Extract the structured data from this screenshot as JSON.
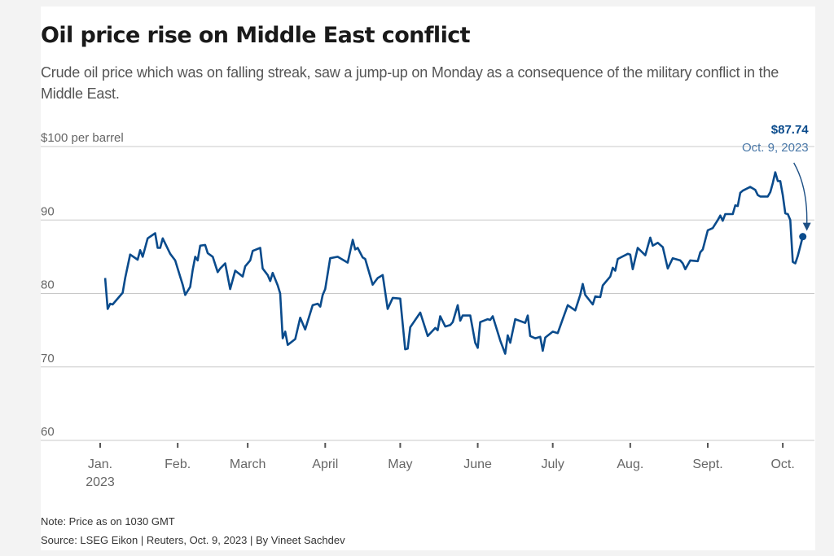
{
  "title": "Oil price rise on Middle East conflict",
  "subtitle": "Crude oil price which was on falling streak, saw a jump-up on Monday as a consequence of the military conflict in the Middle East.",
  "note": "Note: Price as on 1030 GMT",
  "source": "Source: LSEG Eikon | Reuters, Oct. 9, 2023 | By Vineet Sachdev",
  "colors": {
    "line": "#0a4b8c",
    "annotation_date": "#4a78a8",
    "grid": "#c8c8c8"
  },
  "chart_data": {
    "type": "line",
    "title": "Oil price rise on Middle East conflict",
    "xlabel": "",
    "ylabel": "$ per barrel",
    "ylim": [
      60,
      100
    ],
    "yticks": [
      {
        "value": 100,
        "label": "$100 per barrel"
      },
      {
        "value": 90,
        "label": "90"
      },
      {
        "value": 80,
        "label": "80"
      },
      {
        "value": 70,
        "label": "70"
      },
      {
        "value": 60,
        "label": "60"
      }
    ],
    "x_unit": "day of year 2023 (Jan. 1 = 0)",
    "xlim": [
      -5,
      290
    ],
    "xticks": [
      {
        "day": 0,
        "label": "Jan.",
        "sublabel": "2023"
      },
      {
        "day": 31,
        "label": "Feb."
      },
      {
        "day": 59,
        "label": "March"
      },
      {
        "day": 90,
        "label": "April"
      },
      {
        "day": 120,
        "label": "May"
      },
      {
        "day": 151,
        "label": "June"
      },
      {
        "day": 181,
        "label": "July"
      },
      {
        "day": 212,
        "label": "Aug."
      },
      {
        "day": 243,
        "label": "Sept."
      },
      {
        "day": 273,
        "label": "Oct."
      }
    ],
    "grid": true,
    "series": [
      {
        "name": "Crude oil price",
        "points": [
          [
            2,
            82.1
          ],
          [
            3,
            77.9
          ],
          [
            4,
            78.6
          ],
          [
            5,
            78.5
          ],
          [
            9,
            80.1
          ],
          [
            10,
            82.1
          ],
          [
            12,
            85.3
          ],
          [
            15,
            84.6
          ],
          [
            16,
            85.9
          ],
          [
            17,
            85.0
          ],
          [
            19,
            87.5
          ],
          [
            22,
            88.2
          ],
          [
            23,
            86.2
          ],
          [
            24,
            86.2
          ],
          [
            25,
            87.5
          ],
          [
            28,
            85.4
          ],
          [
            30,
            84.5
          ],
          [
            32,
            82.3
          ],
          [
            33,
            81.2
          ],
          [
            34,
            79.8
          ],
          [
            36,
            80.9
          ],
          [
            37,
            83.2
          ],
          [
            38,
            85.0
          ],
          [
            39,
            84.5
          ],
          [
            40,
            86.5
          ],
          [
            42,
            86.6
          ],
          [
            43,
            85.5
          ],
          [
            45,
            85.0
          ],
          [
            47,
            82.9
          ],
          [
            48,
            83.4
          ],
          [
            50,
            84.1
          ],
          [
            52,
            80.6
          ],
          [
            54,
            83.1
          ],
          [
            57,
            82.3
          ],
          [
            58,
            83.7
          ],
          [
            60,
            84.5
          ],
          [
            61,
            85.8
          ],
          [
            64,
            86.2
          ],
          [
            65,
            83.4
          ],
          [
            67,
            82.5
          ],
          [
            68,
            81.7
          ],
          [
            69,
            82.8
          ],
          [
            71,
            81.1
          ],
          [
            72,
            80.0
          ],
          [
            73,
            73.9
          ],
          [
            74,
            74.8
          ],
          [
            75,
            73.0
          ],
          [
            78,
            73.8
          ],
          [
            80,
            76.7
          ],
          [
            82,
            75.1
          ],
          [
            85,
            78.4
          ],
          [
            87,
            78.6
          ],
          [
            88,
            78.2
          ],
          [
            89,
            79.8
          ],
          [
            90,
            80.6
          ],
          [
            92,
            84.8
          ],
          [
            95,
            85.0
          ],
          [
            99,
            84.2
          ],
          [
            101,
            87.3
          ],
          [
            102,
            86.0
          ],
          [
            103,
            86.2
          ],
          [
            105,
            84.9
          ],
          [
            106,
            84.7
          ],
          [
            109,
            81.2
          ],
          [
            111,
            82.1
          ],
          [
            113,
            82.5
          ],
          [
            115,
            77.9
          ],
          [
            117,
            79.4
          ],
          [
            120,
            79.3
          ],
          [
            122,
            72.4
          ],
          [
            123,
            72.5
          ],
          [
            124,
            75.4
          ],
          [
            128,
            77.4
          ],
          [
            131,
            74.2
          ],
          [
            134,
            75.3
          ],
          [
            135,
            75.0
          ],
          [
            136,
            76.9
          ],
          [
            138,
            75.5
          ],
          [
            140,
            75.7
          ],
          [
            141,
            76.1
          ],
          [
            143,
            78.4
          ],
          [
            144,
            76.3
          ],
          [
            145,
            77.0
          ],
          [
            148,
            77.0
          ],
          [
            150,
            73.3
          ],
          [
            151,
            72.6
          ],
          [
            152,
            76.1
          ],
          [
            155,
            76.5
          ],
          [
            156,
            76.4
          ],
          [
            157,
            76.9
          ],
          [
            160,
            73.6
          ],
          [
            162,
            71.8
          ],
          [
            163,
            74.3
          ],
          [
            164,
            73.3
          ],
          [
            166,
            76.5
          ],
          [
            170,
            76.0
          ],
          [
            171,
            77.0
          ],
          [
            172,
            74.2
          ],
          [
            174,
            73.9
          ],
          [
            176,
            74.1
          ],
          [
            177,
            72.2
          ],
          [
            178,
            74.0
          ],
          [
            181,
            74.8
          ],
          [
            183,
            74.6
          ],
          [
            185,
            76.5
          ],
          [
            187,
            78.4
          ],
          [
            190,
            77.7
          ],
          [
            192,
            79.8
          ],
          [
            193,
            81.3
          ],
          [
            194,
            79.8
          ],
          [
            197,
            78.5
          ],
          [
            198,
            79.6
          ],
          [
            200,
            79.5
          ],
          [
            201,
            81.1
          ],
          [
            204,
            82.3
          ],
          [
            205,
            83.5
          ],
          [
            206,
            83.1
          ],
          [
            207,
            84.7
          ],
          [
            211,
            85.4
          ],
          [
            212,
            85.3
          ],
          [
            213,
            83.3
          ],
          [
            215,
            86.2
          ],
          [
            218,
            85.2
          ],
          [
            220,
            87.6
          ],
          [
            221,
            86.5
          ],
          [
            223,
            86.9
          ],
          [
            225,
            86.3
          ],
          [
            227,
            83.4
          ],
          [
            229,
            84.8
          ],
          [
            232,
            84.5
          ],
          [
            233,
            84.1
          ],
          [
            234,
            83.3
          ],
          [
            236,
            84.5
          ],
          [
            239,
            84.4
          ],
          [
            240,
            85.6
          ],
          [
            241,
            86.0
          ],
          [
            243,
            88.6
          ],
          [
            245,
            88.9
          ],
          [
            247,
            90.0
          ],
          [
            248,
            90.6
          ],
          [
            249,
            89.9
          ],
          [
            250,
            90.8
          ],
          [
            253,
            90.8
          ],
          [
            254,
            92.0
          ],
          [
            255,
            91.9
          ],
          [
            256,
            93.7
          ],
          [
            257,
            94.0
          ],
          [
            260,
            94.5
          ],
          [
            262,
            94.1
          ],
          [
            263,
            93.4
          ],
          [
            264,
            93.2
          ],
          [
            267,
            93.2
          ],
          [
            268,
            93.8
          ],
          [
            269,
            95.0
          ],
          [
            270,
            96.5
          ],
          [
            271,
            95.3
          ],
          [
            272,
            95.3
          ],
          [
            273,
            93.4
          ],
          [
            274,
            90.9
          ],
          [
            275,
            90.8
          ],
          [
            276,
            90.0
          ],
          [
            277,
            84.3
          ],
          [
            278,
            84.1
          ],
          [
            279,
            85.1
          ],
          [
            281,
            87.74
          ]
        ]
      }
    ],
    "annotations": [
      {
        "day": 281,
        "value": 87.74,
        "value_label": "$87.74",
        "date_label": "Oct. 9, 2023",
        "arrow": true
      }
    ],
    "legend": "none"
  }
}
